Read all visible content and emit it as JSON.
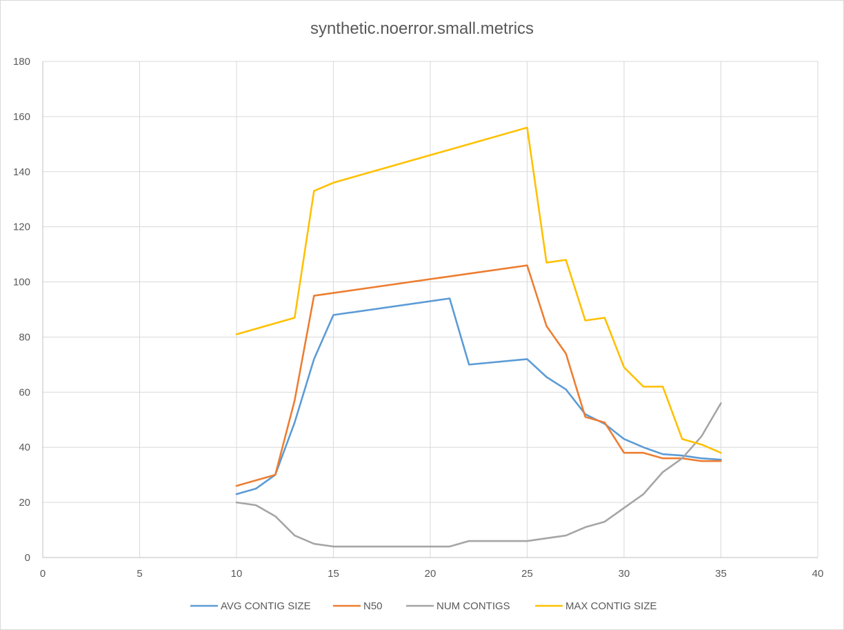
{
  "chart_data": {
    "type": "line",
    "title": "synthetic.noerror.small.metrics",
    "xlabel": "",
    "ylabel": "",
    "xlim": [
      0,
      40
    ],
    "ylim": [
      0,
      180
    ],
    "x_ticks": [
      0,
      5,
      10,
      15,
      20,
      25,
      30,
      35,
      40
    ],
    "y_ticks": [
      0,
      20,
      40,
      60,
      80,
      100,
      120,
      140,
      160,
      180
    ],
    "grid": true,
    "legend_position": "bottom",
    "x": [
      10,
      11,
      12,
      13,
      14,
      15,
      21,
      22,
      25,
      26,
      27,
      28,
      29,
      30,
      31,
      32,
      33,
      34,
      35
    ],
    "series": [
      {
        "name": "AVG CONTIG SIZE",
        "color": "#5b9bd5",
        "values": [
          23,
          25,
          30,
          49,
          72,
          88,
          94,
          70,
          72,
          65.5,
          61,
          52,
          48.5,
          43,
          40,
          37.5,
          37,
          36,
          35.5
        ]
      },
      {
        "name": "N50",
        "color": "#ed7d31",
        "values": [
          26,
          28,
          30,
          57,
          95,
          96,
          102,
          103,
          106,
          84,
          74,
          51,
          49,
          38,
          38,
          36,
          36,
          35,
          35
        ]
      },
      {
        "name": "NUM CONTIGS",
        "color": "#a5a5a5",
        "values": [
          20,
          19,
          15,
          8,
          5,
          4,
          4,
          6,
          6,
          7,
          8,
          11,
          13,
          18,
          23,
          31,
          36,
          44,
          56
        ]
      },
      {
        "name": "MAX CONTIG SIZE",
        "color": "#ffc000",
        "values": [
          81,
          83,
          85,
          87,
          133,
          136,
          148,
          150,
          156,
          107,
          108,
          86,
          87,
          69,
          62,
          62,
          43,
          41,
          38
        ]
      }
    ]
  }
}
